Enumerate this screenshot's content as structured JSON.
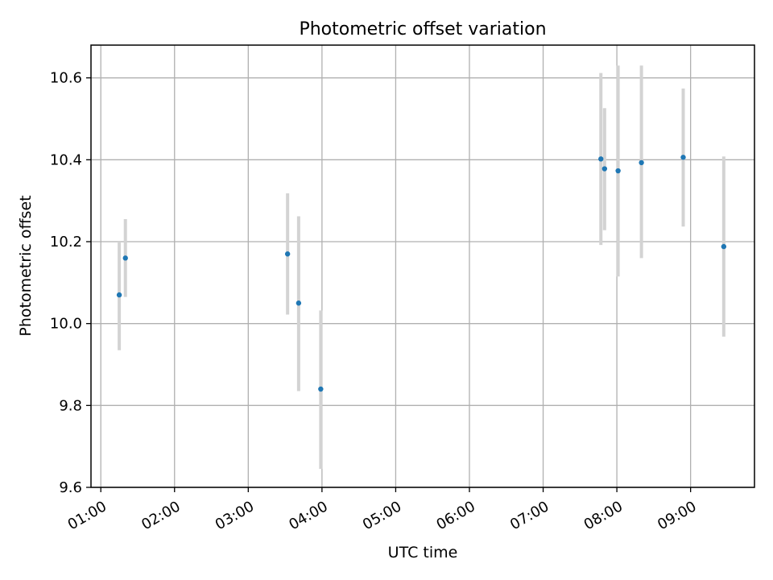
{
  "chart_data": {
    "type": "scatter",
    "title": "Photometric offset variation",
    "xlabel": "UTC time",
    "ylabel": "Photometric offset",
    "xlim": [
      "00:52",
      "09:52"
    ],
    "ylim": [
      9.6,
      10.68
    ],
    "x_ticks": [
      "01:00",
      "02:00",
      "03:00",
      "04:00",
      "05:00",
      "06:00",
      "07:00",
      "08:00",
      "09:00"
    ],
    "y_ticks": [
      9.6,
      9.8,
      10.0,
      10.2,
      10.4,
      10.6
    ],
    "y_tick_labels": [
      "9.6",
      "9.8",
      "10.0",
      "10.2",
      "10.4",
      "10.6"
    ],
    "grid": true,
    "colors": {
      "points": "#1f77b4",
      "errorbars": "#d3d3d3",
      "grid": "#b0b0b0"
    },
    "points": [
      {
        "x": "01:15",
        "y": 10.07,
        "yerr_low": 9.935,
        "yerr_high": 10.2
      },
      {
        "x": "01:20",
        "y": 10.16,
        "yerr_low": 10.065,
        "yerr_high": 10.255
      },
      {
        "x": "03:32",
        "y": 10.17,
        "yerr_low": 10.022,
        "yerr_high": 10.318
      },
      {
        "x": "03:41",
        "y": 10.05,
        "yerr_low": 9.835,
        "yerr_high": 10.262
      },
      {
        "x": "03:59",
        "y": 9.84,
        "yerr_low": 9.645,
        "yerr_high": 10.032
      },
      {
        "x": "07:47",
        "y": 10.402,
        "yerr_low": 10.192,
        "yerr_high": 10.612
      },
      {
        "x": "07:50",
        "y": 10.378,
        "yerr_low": 10.228,
        "yerr_high": 10.526
      },
      {
        "x": "08:01",
        "y": 10.373,
        "yerr_low": 10.115,
        "yerr_high": 10.63
      },
      {
        "x": "08:20",
        "y": 10.393,
        "yerr_low": 10.16,
        "yerr_high": 10.63
      },
      {
        "x": "08:54",
        "y": 10.406,
        "yerr_low": 10.237,
        "yerr_high": 10.574
      },
      {
        "x": "09:27",
        "y": 10.188,
        "yerr_low": 9.968,
        "yerr_high": 10.408
      }
    ]
  }
}
